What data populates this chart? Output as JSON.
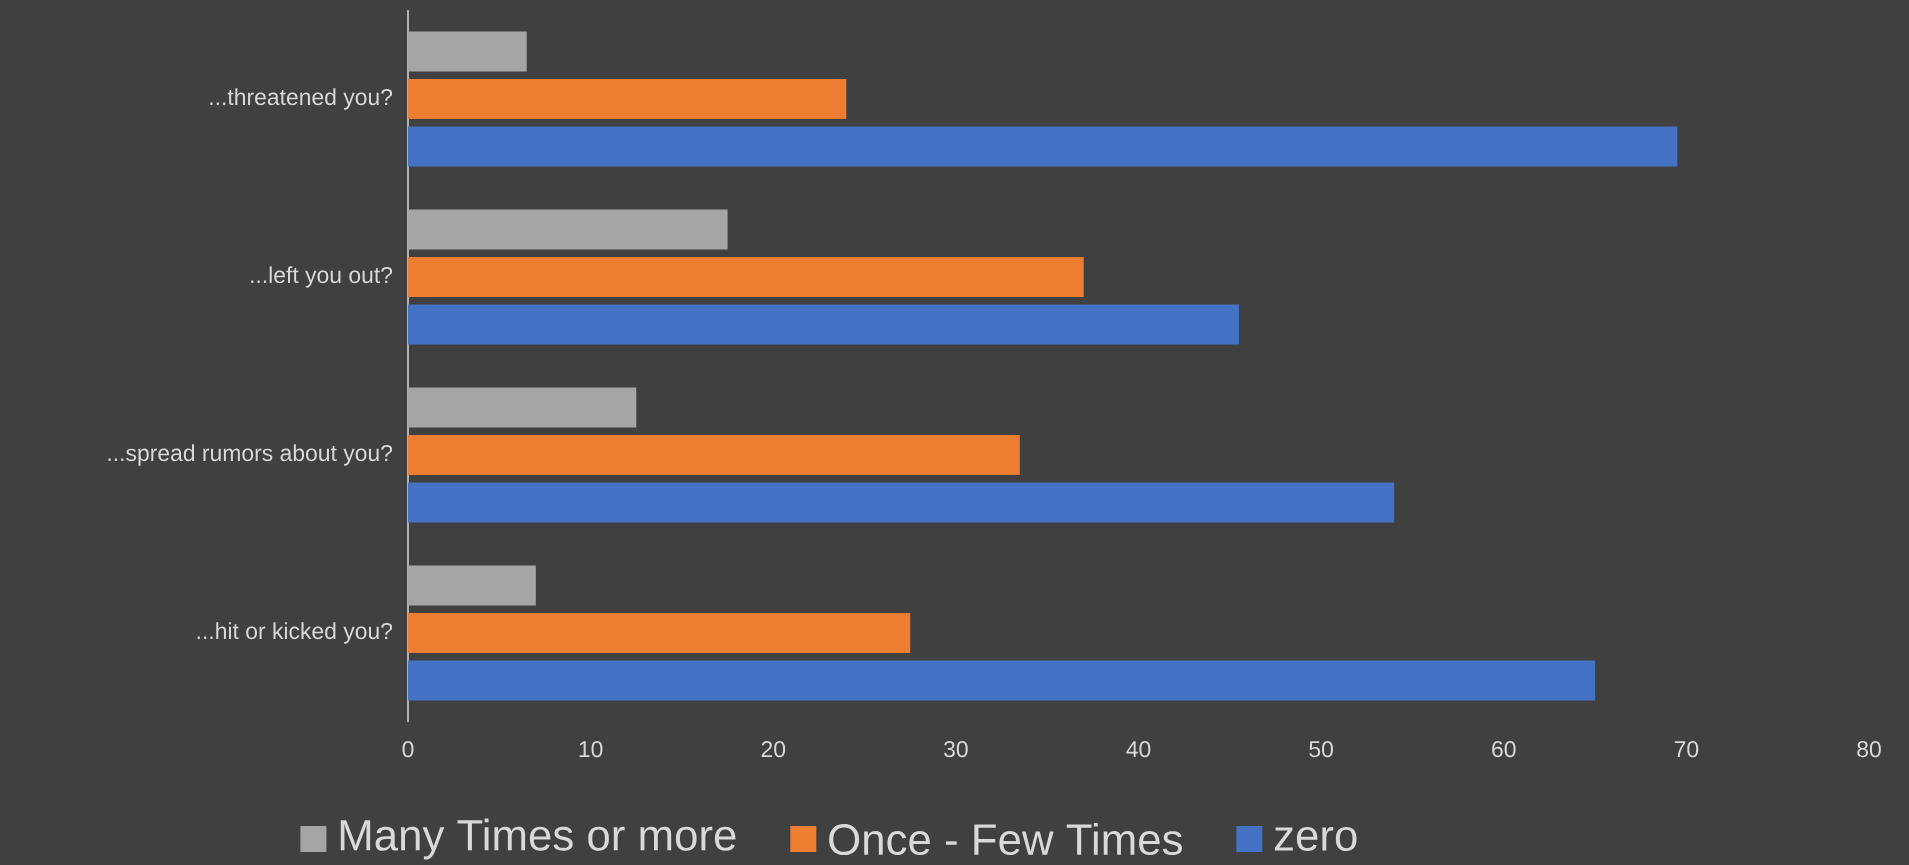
{
  "chart_data": {
    "type": "bar",
    "orientation": "horizontal",
    "categories": [
      "...threatened you?",
      "...left you out?",
      "...spread rumors about you?",
      "...hit or kicked you?"
    ],
    "series": [
      {
        "name": "Many Times or more",
        "color": "#a5a5a5",
        "values": [
          6.5,
          17.5,
          12.5,
          7
        ]
      },
      {
        "name": "Once - Few Times",
        "color": "#ed7d31",
        "values": [
          24,
          37,
          33.5,
          27.5
        ]
      },
      {
        "name": "zero",
        "color": "#4472c4",
        "values": [
          69.5,
          45.5,
          54,
          65
        ]
      }
    ],
    "xlim": [
      0,
      80
    ],
    "xticks": [
      0,
      10,
      20,
      30,
      40,
      50,
      60,
      70,
      80
    ],
    "grid": false,
    "legend": "bottom"
  }
}
